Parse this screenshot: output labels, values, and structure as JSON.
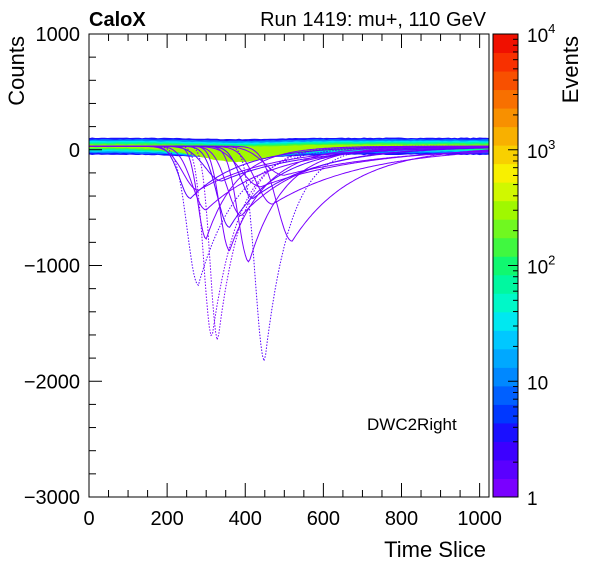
{
  "header": {
    "experiment": "CaloX",
    "run_info": "Run 1419: mu+, 110 GeV"
  },
  "chart_data": {
    "type": "heatmap",
    "title": "Run 1419: mu+, 110 GeV",
    "xlabel": "Time Slice",
    "ylabel": "Counts",
    "zlabel": "Events",
    "xlim": [
      0,
      1024
    ],
    "ylim": [
      -3000,
      1000
    ],
    "zlim": [
      1,
      10000
    ],
    "zscale": "log",
    "x_ticks": [
      "0",
      "200",
      "400",
      "600",
      "800",
      "1000"
    ],
    "x_tick_values": [
      0,
      200,
      400,
      600,
      800,
      1000
    ],
    "y_ticks": [
      "1000",
      "0",
      "−1000",
      "−2000",
      "−3000"
    ],
    "y_tick_values": [
      1000,
      0,
      -1000,
      -2000,
      -3000
    ],
    "z_ticks": [
      {
        "value": 1,
        "label": "1"
      },
      {
        "value": 10,
        "label": "10"
      },
      {
        "value": 100,
        "label": "10",
        "exp": "2"
      },
      {
        "value": 1000,
        "label": "10",
        "exp": "3"
      },
      {
        "value": 10000,
        "label": "10",
        "exp": "4"
      }
    ],
    "annotation": "DWC2Right",
    "baseline": {
      "center": 30,
      "halfwidth": 70
    },
    "pulses": [
      {
        "t0": 280,
        "min": -1200,
        "width": 40,
        "tail": 60
      },
      {
        "t0": 330,
        "min": -1680,
        "width": 28,
        "tail": 35
      },
      {
        "t0": 315,
        "min": -1650,
        "width": 30,
        "tail": 40
      },
      {
        "t0": 450,
        "min": -1860,
        "width": 35,
        "tail": 30
      },
      {
        "t0": 520,
        "min": -820,
        "width": 55,
        "tail": 100
      },
      {
        "t0": 410,
        "min": -1000,
        "width": 40,
        "tail": 50
      },
      {
        "t0": 360,
        "min": -700,
        "width": 45,
        "tail": 80
      },
      {
        "t0": 300,
        "min": -550,
        "width": 50,
        "tail": 120
      },
      {
        "t0": 470,
        "min": -500,
        "width": 60,
        "tail": 180
      },
      {
        "t0": 260,
        "min": -450,
        "width": 40,
        "tail": 90
      },
      {
        "t0": 390,
        "min": -600,
        "width": 50,
        "tail": 110
      },
      {
        "t0": 440,
        "min": -350,
        "width": 70,
        "tail": 200
      },
      {
        "t0": 340,
        "min": -300,
        "width": 60,
        "tail": 150
      },
      {
        "t0": 500,
        "min": -250,
        "width": 70,
        "tail": 220
      },
      {
        "t0": 280,
        "min": -380,
        "width": 55,
        "tail": 140
      },
      {
        "t0": 420,
        "min": -450,
        "width": 45,
        "tail": 130
      },
      {
        "t0": 360,
        "min": -900,
        "width": 35,
        "tail": 60
      },
      {
        "t0": 300,
        "min": -800,
        "width": 30,
        "tail": 50
      }
    ],
    "grid": false
  },
  "colors": {
    "palette": [
      "#7a00ff",
      "#5a00ff",
      "#3c00ff",
      "#1a10ff",
      "#0038ff",
      "#0060ff",
      "#0088ff",
      "#00a8ff",
      "#00c8ff",
      "#00e8f0",
      "#00f8c8",
      "#00f8a0",
      "#10f870",
      "#40f840",
      "#70f820",
      "#a0f800",
      "#d0f800",
      "#f8f000",
      "#f8d000",
      "#f8b000",
      "#f89000",
      "#f87000",
      "#f85000",
      "#f83000",
      "#f01000"
    ]
  }
}
